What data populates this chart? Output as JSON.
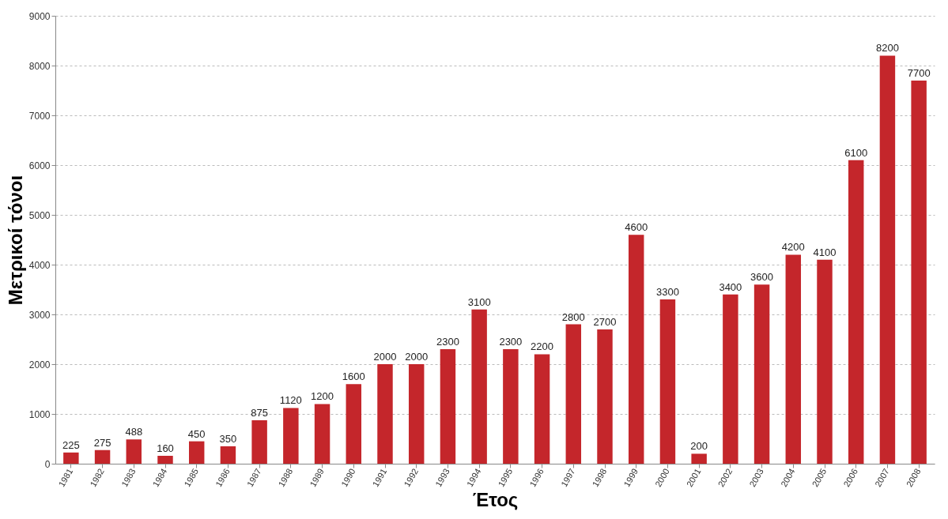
{
  "chart_data": {
    "type": "bar",
    "xlabel": "Έτος",
    "ylabel": "Μετρικοί τόνοι",
    "categories": [
      "1981",
      "1982",
      "1983",
      "1984",
      "1985",
      "1986",
      "1987",
      "1988",
      "1989",
      "1990",
      "1991",
      "1992",
      "1993",
      "1994",
      "1995",
      "1996",
      "1997",
      "1998",
      "1999",
      "2000",
      "2001",
      "2002",
      "2003",
      "2004",
      "2005",
      "2006",
      "2007",
      "2008"
    ],
    "values": [
      225,
      275,
      488,
      160,
      450,
      350,
      875,
      1120,
      1200,
      1600,
      2000,
      2000,
      2300,
      3100,
      2300,
      2200,
      2800,
      2700,
      4600,
      3300,
      200,
      3400,
      3600,
      4200,
      4100,
      6100,
      8200,
      7700
    ],
    "color": "#c4262b",
    "ylim": [
      0,
      9000
    ],
    "yticks": [
      0,
      1000,
      2000,
      3000,
      4000,
      5000,
      6000,
      7000,
      8000,
      9000
    ],
    "grid": "y",
    "data_labels": true
  }
}
